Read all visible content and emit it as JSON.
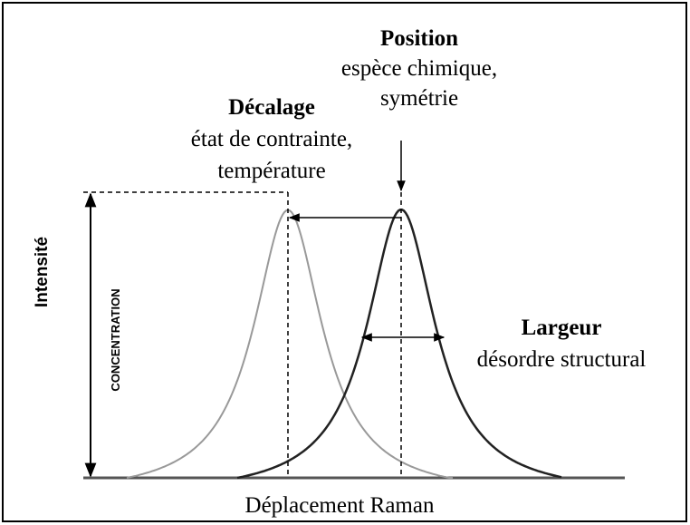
{
  "position": {
    "title": "Position",
    "lines": [
      "espèce chimique,",
      "symétrie"
    ]
  },
  "shift": {
    "title": "Décalage",
    "lines": [
      "état de contrainte,",
      "température"
    ]
  },
  "width": {
    "title": "Largeur",
    "lines": [
      "désordre structural"
    ]
  },
  "y_axis_label": "Intensité",
  "height_label": "CONCENTRATION",
  "x_axis_label": "Déplacement Raman"
}
